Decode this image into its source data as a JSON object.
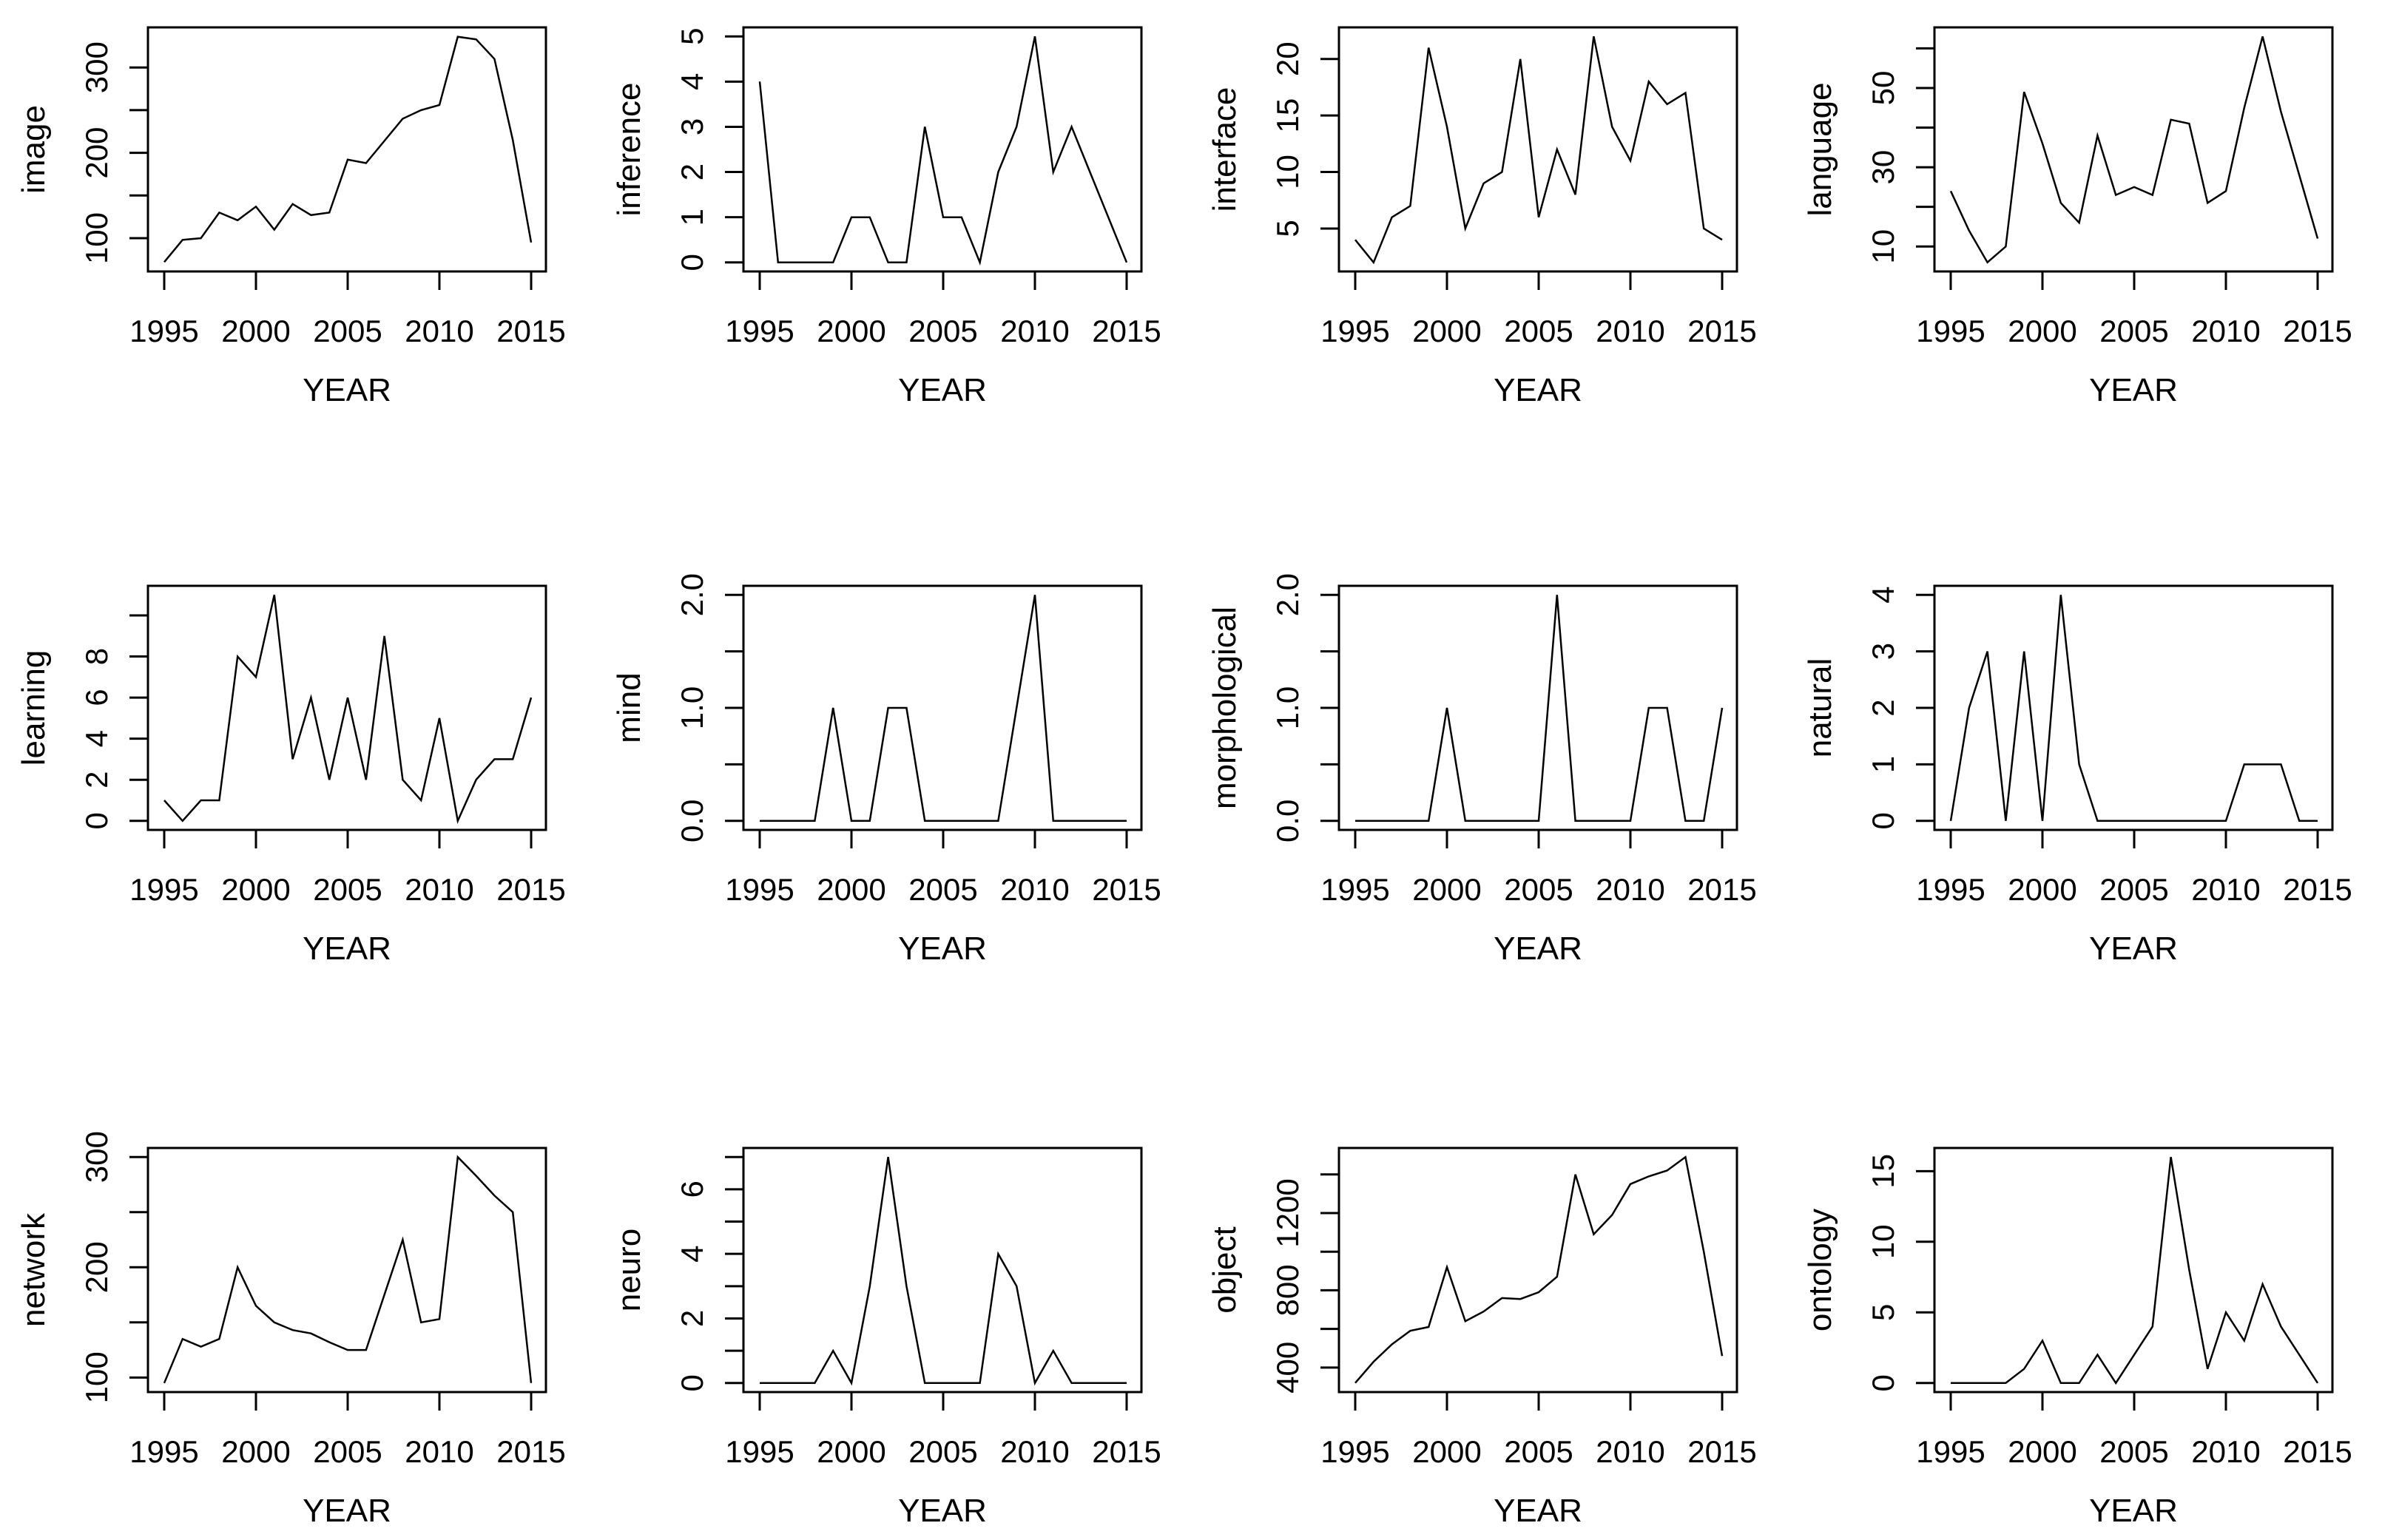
{
  "figure": {
    "background": "#ffffff",
    "line_color": "#000000",
    "text_color": "#000000",
    "xlabel": "YEAR"
  },
  "years": [
    1995,
    1996,
    1997,
    1998,
    1999,
    2000,
    2001,
    2002,
    2003,
    2004,
    2005,
    2006,
    2007,
    2008,
    2009,
    2010,
    2011,
    2012,
    2013,
    2014,
    2015
  ],
  "xticks": [
    1995,
    2000,
    2005,
    2010,
    2015
  ],
  "xtick_labels": [
    "1995",
    "2000",
    "2005",
    "2010",
    "2015"
  ],
  "chart_data": [
    {
      "type": "line",
      "ylabel": "image",
      "xlabel": "YEAR",
      "x": [
        1995,
        1996,
        1997,
        1998,
        1999,
        2000,
        2001,
        2002,
        2003,
        2004,
        2005,
        2006,
        2007,
        2008,
        2009,
        2010,
        2011,
        2012,
        2013,
        2014,
        2015
      ],
      "values": [
        72,
        98,
        100,
        130,
        121,
        137,
        110,
        140,
        127,
        130,
        192,
        188,
        214,
        240,
        250,
        256,
        336,
        333,
        310,
        215,
        95
      ],
      "yticks": [
        100,
        150,
        200,
        250,
        300
      ],
      "ytick_labels": [
        "100",
        "",
        "200",
        "",
        "300"
      ],
      "ylim": [
        61,
        347
      ],
      "grid": false,
      "legend": "none"
    },
    {
      "type": "line",
      "ylabel": "inference",
      "xlabel": "YEAR",
      "x": [
        1995,
        1996,
        1997,
        1998,
        1999,
        2000,
        2001,
        2002,
        2003,
        2004,
        2005,
        2006,
        2007,
        2008,
        2009,
        2010,
        2011,
        2012,
        2013,
        2014,
        2015
      ],
      "values": [
        4,
        0,
        0,
        0,
        0,
        1,
        1,
        0,
        0,
        3,
        1,
        1,
        0,
        2,
        3,
        5,
        2,
        3,
        2,
        1,
        0
      ],
      "yticks": [
        0,
        1,
        2,
        3,
        4,
        5
      ],
      "ytick_labels": [
        "0",
        "1",
        "2",
        "3",
        "4",
        "5"
      ],
      "ylim": [
        -0.2,
        5.2
      ],
      "grid": false,
      "legend": "none"
    },
    {
      "type": "line",
      "ylabel": "interface",
      "xlabel": "YEAR",
      "x": [
        1995,
        1996,
        1997,
        1998,
        1999,
        2000,
        2001,
        2002,
        2003,
        2004,
        2005,
        2006,
        2007,
        2008,
        2009,
        2010,
        2011,
        2012,
        2013,
        2014,
        2015
      ],
      "values": [
        4,
        2,
        6,
        7,
        21,
        14,
        5,
        9,
        10,
        20,
        6,
        12,
        8,
        22,
        14,
        11,
        18,
        16,
        17,
        5,
        4
      ],
      "yticks": [
        5,
        10,
        15,
        20
      ],
      "ytick_labels": [
        "5",
        "10",
        "15",
        "20"
      ],
      "ylim": [
        1.2,
        22.8
      ],
      "grid": false,
      "legend": "none"
    },
    {
      "type": "line",
      "ylabel": "language",
      "xlabel": "YEAR",
      "x": [
        1995,
        1996,
        1997,
        1998,
        1999,
        2000,
        2001,
        2002,
        2003,
        2004,
        2005,
        2006,
        2007,
        2008,
        2009,
        2010,
        2011,
        2012,
        2013,
        2014,
        2015
      ],
      "values": [
        24,
        14,
        6,
        10,
        49,
        36,
        21,
        16,
        38,
        23,
        25,
        23,
        42,
        41,
        21,
        24,
        45,
        63,
        44,
        28,
        12
      ],
      "yticks": [
        10,
        20,
        30,
        40,
        50,
        60
      ],
      "ytick_labels": [
        "10",
        "",
        "30",
        "",
        "50",
        ""
      ],
      "ylim": [
        3.7,
        65.3
      ],
      "grid": false,
      "legend": "none"
    },
    {
      "type": "line",
      "ylabel": "learning",
      "xlabel": "YEAR",
      "x": [
        1995,
        1996,
        1997,
        1998,
        1999,
        2000,
        2001,
        2002,
        2003,
        2004,
        2005,
        2006,
        2007,
        2008,
        2009,
        2010,
        2011,
        2012,
        2013,
        2014,
        2015
      ],
      "values": [
        1,
        0,
        1,
        1,
        8,
        7,
        11,
        3,
        6,
        2,
        6,
        2,
        9,
        2,
        1,
        5,
        0,
        2,
        3,
        3,
        6
      ],
      "yticks": [
        0,
        2,
        4,
        6,
        8,
        10
      ],
      "ytick_labels": [
        "0",
        "2",
        "4",
        "6",
        "8",
        ""
      ],
      "ylim": [
        -0.44,
        11.44
      ],
      "grid": false,
      "legend": "none"
    },
    {
      "type": "line",
      "ylabel": "mind",
      "xlabel": "YEAR",
      "x": [
        1995,
        1996,
        1997,
        1998,
        1999,
        2000,
        2001,
        2002,
        2003,
        2004,
        2005,
        2006,
        2007,
        2008,
        2009,
        2010,
        2011,
        2012,
        2013,
        2014,
        2015
      ],
      "values": [
        0,
        0,
        0,
        0,
        1,
        0,
        0,
        1,
        1,
        0,
        0,
        0,
        0,
        0,
        1,
        2,
        0,
        0,
        0,
        0,
        0
      ],
      "yticks": [
        0,
        0.5,
        1,
        1.5,
        2
      ],
      "ytick_labels": [
        "0.0",
        "",
        "1.0",
        "",
        "2.0"
      ],
      "ylim": [
        -0.08,
        2.08
      ],
      "grid": false,
      "legend": "none"
    },
    {
      "type": "line",
      "ylabel": "morphological",
      "xlabel": "YEAR",
      "x": [
        1995,
        1996,
        1997,
        1998,
        1999,
        2000,
        2001,
        2002,
        2003,
        2004,
        2005,
        2006,
        2007,
        2008,
        2009,
        2010,
        2011,
        2012,
        2013,
        2014,
        2015
      ],
      "values": [
        0,
        0,
        0,
        0,
        0,
        1,
        0,
        0,
        0,
        0,
        0,
        2,
        0,
        0,
        0,
        0,
        1,
        1,
        0,
        0,
        1
      ],
      "yticks": [
        0,
        0.5,
        1,
        1.5,
        2
      ],
      "ytick_labels": [
        "0.0",
        "",
        "1.0",
        "",
        "2.0"
      ],
      "ylim": [
        -0.08,
        2.08
      ],
      "grid": false,
      "legend": "none"
    },
    {
      "type": "line",
      "ylabel": "natural",
      "xlabel": "YEAR",
      "x": [
        1995,
        1996,
        1997,
        1998,
        1999,
        2000,
        2001,
        2002,
        2003,
        2004,
        2005,
        2006,
        2007,
        2008,
        2009,
        2010,
        2011,
        2012,
        2013,
        2014,
        2015
      ],
      "values": [
        0,
        2,
        3,
        0,
        3,
        0,
        4,
        1,
        0,
        0,
        0,
        0,
        0,
        0,
        0,
        0,
        1,
        1,
        1,
        0,
        0
      ],
      "yticks": [
        0,
        1,
        2,
        3,
        4
      ],
      "ytick_labels": [
        "0",
        "1",
        "2",
        "3",
        "4"
      ],
      "ylim": [
        -0.16,
        4.16
      ],
      "grid": false,
      "legend": "none"
    },
    {
      "type": "line",
      "ylabel": "network",
      "xlabel": "YEAR",
      "x": [
        1995,
        1996,
        1997,
        1998,
        1999,
        2000,
        2001,
        2002,
        2003,
        2004,
        2005,
        2006,
        2007,
        2008,
        2009,
        2010,
        2011,
        2012,
        2013,
        2014,
        2015
      ],
      "values": [
        95,
        135,
        128,
        135,
        200,
        165,
        150,
        143,
        140,
        132,
        125,
        125,
        175,
        225,
        150,
        153,
        300,
        283,
        265,
        250,
        95
      ],
      "yticks": [
        100,
        150,
        200,
        250,
        300
      ],
      "ytick_labels": [
        "100",
        "",
        "200",
        "",
        "300"
      ],
      "ylim": [
        86.8,
        308.2
      ],
      "grid": false,
      "legend": "none"
    },
    {
      "type": "line",
      "ylabel": "neuro",
      "xlabel": "YEAR",
      "x": [
        1995,
        1996,
        1997,
        1998,
        1999,
        2000,
        2001,
        2002,
        2003,
        2004,
        2005,
        2006,
        2007,
        2008,
        2009,
        2010,
        2011,
        2012,
        2013,
        2014,
        2015
      ],
      "values": [
        0,
        0,
        0,
        0,
        1,
        0,
        3,
        7,
        3,
        0,
        0,
        0,
        0,
        4,
        3,
        0,
        1,
        0,
        0,
        0,
        0
      ],
      "yticks": [
        0,
        1,
        2,
        3,
        4,
        5,
        6,
        7
      ],
      "ytick_labels": [
        "0",
        "",
        "2",
        "",
        "4",
        "",
        "6",
        ""
      ],
      "ylim": [
        -0.28,
        7.28
      ],
      "grid": false,
      "legend": "none"
    },
    {
      "type": "line",
      "ylabel": "object",
      "xlabel": "YEAR",
      "x": [
        1995,
        1996,
        1997,
        1998,
        1999,
        2000,
        2001,
        2002,
        2003,
        2004,
        2005,
        2006,
        2007,
        2008,
        2009,
        2010,
        2011,
        2012,
        2013,
        2014,
        2015
      ],
      "values": [
        320,
        430,
        520,
        590,
        610,
        920,
        640,
        690,
        760,
        755,
        790,
        870,
        1400,
        1090,
        1190,
        1350,
        1390,
        1420,
        1490,
        1000,
        460
      ],
      "yticks": [
        400,
        600,
        800,
        1000,
        1200,
        1400
      ],
      "ytick_labels": [
        "400",
        "",
        "800",
        "",
        "1200",
        ""
      ],
      "ylim": [
        273,
        1537
      ],
      "grid": false,
      "legend": "none"
    },
    {
      "type": "line",
      "ylabel": "ontology",
      "xlabel": "YEAR",
      "x": [
        1995,
        1996,
        1997,
        1998,
        1999,
        2000,
        2001,
        2002,
        2003,
        2004,
        2005,
        2006,
        2007,
        2008,
        2009,
        2010,
        2011,
        2012,
        2013,
        2014,
        2015
      ],
      "values": [
        0,
        0,
        0,
        0,
        1,
        3,
        0,
        0,
        2,
        0,
        2,
        4,
        16,
        8,
        1,
        5,
        3,
        7,
        4,
        2,
        0
      ],
      "yticks": [
        0,
        5,
        10,
        15
      ],
      "ytick_labels": [
        "0",
        "5",
        "10",
        "15"
      ],
      "ylim": [
        -0.64,
        16.64
      ],
      "grid": false,
      "legend": "none"
    }
  ]
}
